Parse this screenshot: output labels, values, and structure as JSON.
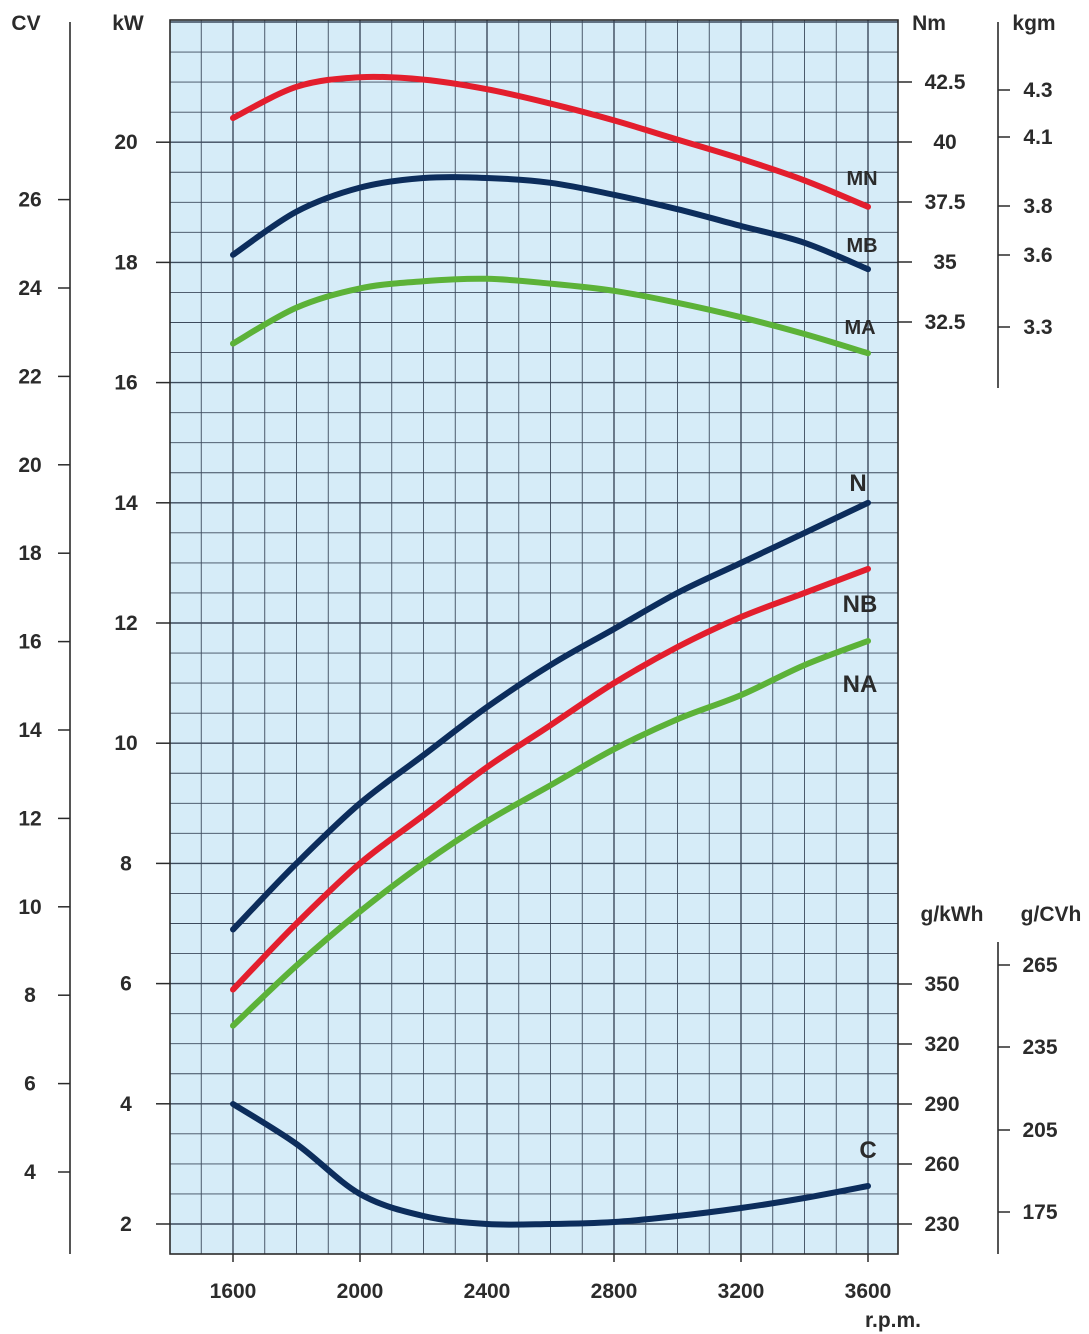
{
  "chart_data": {
    "type": "line",
    "xlabel": "r.p.m.",
    "x_ticks": [
      "1600",
      "2000",
      "2400",
      "2800",
      "3200",
      "3600"
    ],
    "xlim": [
      1400,
      3700
    ],
    "axes": {
      "cv": {
        "unit": "CV",
        "ticks": [
          "4",
          "6",
          "8",
          "10",
          "12",
          "14",
          "16",
          "18",
          "20",
          "22",
          "24",
          "26"
        ],
        "range": [
          4,
          26
        ]
      },
      "kw": {
        "unit": "kW",
        "ticks": [
          "2",
          "4",
          "6",
          "8",
          "10",
          "12",
          "14",
          "16",
          "18",
          "20"
        ],
        "range": [
          2,
          20
        ]
      },
      "nm": {
        "unit": "Nm",
        "ticks": [
          "32.5",
          "35",
          "37.5",
          "40",
          "42.5"
        ],
        "range": [
          32.5,
          42.5
        ]
      },
      "kgm": {
        "unit": "kgm",
        "ticks": [
          "3.3",
          "3.6",
          "3.8",
          "4.1",
          "4.3"
        ]
      },
      "gkwh": {
        "unit": "g/kWh",
        "ticks": [
          "230",
          "260",
          "290",
          "320",
          "350"
        ],
        "range": [
          230,
          350
        ]
      },
      "gcvh": {
        "unit": "g/CVh",
        "ticks": [
          "175",
          "205",
          "235",
          "265"
        ]
      }
    },
    "x": [
      1600,
      1800,
      2000,
      2200,
      2400,
      2600,
      2800,
      3000,
      3200,
      3400,
      3600
    ],
    "series": [
      {
        "name": "MN",
        "axis": "nm",
        "color": "#e31e2d",
        "values": [
          41.0,
          42.3,
          42.7,
          42.6,
          42.2,
          41.6,
          40.9,
          40.1,
          39.3,
          38.4,
          37.3
        ]
      },
      {
        "name": "MB",
        "axis": "nm",
        "color": "#0c2d5c",
        "values": [
          35.3,
          37.1,
          38.1,
          38.5,
          38.5,
          38.3,
          37.8,
          37.2,
          36.5,
          35.8,
          34.7
        ]
      },
      {
        "name": "MA",
        "axis": "nm",
        "color": "#5cb238",
        "values": [
          31.6,
          33.1,
          33.9,
          34.2,
          34.3,
          34.1,
          33.8,
          33.3,
          32.7,
          32.0,
          31.2
        ]
      },
      {
        "name": "N",
        "axis": "kw",
        "color": "#0c2d5c",
        "values": [
          6.9,
          8.0,
          9.0,
          9.8,
          10.6,
          11.3,
          11.9,
          12.5,
          13.0,
          13.5,
          14.0
        ]
      },
      {
        "name": "NB",
        "axis": "kw",
        "color": "#e31e2d",
        "values": [
          5.9,
          7.0,
          8.0,
          8.8,
          9.6,
          10.3,
          11.0,
          11.6,
          12.1,
          12.5,
          12.9
        ]
      },
      {
        "name": "NA",
        "axis": "kw",
        "color": "#5cb238",
        "values": [
          5.3,
          6.3,
          7.2,
          8.0,
          8.7,
          9.3,
          9.9,
          10.4,
          10.8,
          11.3,
          11.7
        ]
      },
      {
        "name": "C",
        "axis": "gkwh",
        "color": "#0c2d5c",
        "values": [
          290,
          270,
          245,
          234,
          230,
          230,
          231,
          234,
          238,
          243,
          249
        ]
      }
    ],
    "grid": true,
    "plot_background": "#d6ecf8",
    "grid_color": "#3c4a5c"
  }
}
